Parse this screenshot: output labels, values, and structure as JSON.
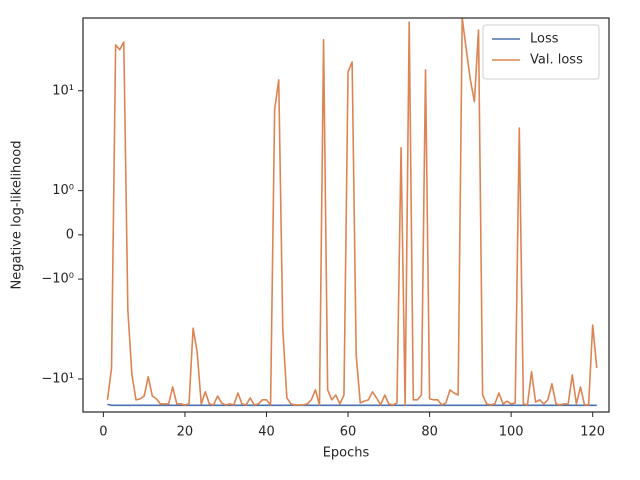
{
  "chart_data": {
    "type": "line",
    "xlabel": "Epochs",
    "ylabel": "Negative log-likelihood",
    "x": [
      1,
      2,
      3,
      4,
      5,
      6,
      7,
      8,
      9,
      10,
      11,
      12,
      13,
      14,
      15,
      16,
      17,
      18,
      19,
      20,
      21,
      22,
      23,
      24,
      25,
      26,
      27,
      28,
      29,
      30,
      31,
      32,
      33,
      34,
      35,
      36,
      37,
      38,
      39,
      40,
      41,
      42,
      43,
      44,
      45,
      46,
      47,
      48,
      49,
      50,
      51,
      52,
      53,
      54,
      55,
      56,
      57,
      58,
      59,
      60,
      61,
      62,
      63,
      64,
      65,
      66,
      67,
      68,
      69,
      70,
      71,
      72,
      73,
      74,
      75,
      76,
      77,
      78,
      79,
      80,
      81,
      82,
      83,
      84,
      85,
      86,
      87,
      88,
      89,
      90,
      91,
      92,
      93,
      94,
      95,
      96,
      97,
      98,
      99,
      100,
      101,
      102,
      103,
      104,
      105,
      106,
      107,
      108,
      109,
      110,
      111,
      112,
      113,
      114,
      115,
      116,
      117,
      118,
      119,
      120,
      121
    ],
    "series": [
      {
        "name": "Loss",
        "color": "#4c72b0",
        "values": [
          -20.9,
          -21.4,
          -21.4,
          -21.4,
          -21.4,
          -21.4,
          -21.4,
          -21.4,
          -21.4,
          -21.4,
          -21.4,
          -21.4,
          -21.4,
          -21.4,
          -21.4,
          -21.4,
          -21.4,
          -21.4,
          -21.4,
          -21.4,
          -21.4,
          -21.4,
          -21.4,
          -21.4,
          -21.4,
          -21.4,
          -21.4,
          -21.4,
          -21.4,
          -21.4,
          -21.4,
          -21.4,
          -21.4,
          -21.4,
          -21.4,
          -21.4,
          -21.4,
          -21.4,
          -21.4,
          -21.4,
          -21.4,
          -21.4,
          -21.4,
          -21.4,
          -21.4,
          -21.4,
          -21.4,
          -21.4,
          -21.4,
          -21.4,
          -21.4,
          -21.4,
          -21.4,
          -21.4,
          -21.4,
          -21.4,
          -21.4,
          -21.4,
          -21.4,
          -21.4,
          -21.4,
          -21.4,
          -21.4,
          -21.4,
          -21.4,
          -21.4,
          -21.4,
          -21.4,
          -21.4,
          -21.4,
          -21.4,
          -21.4,
          -21.4,
          -21.4,
          -21.4,
          -21.4,
          -21.4,
          -21.4,
          -21.4,
          -21.4,
          -21.4,
          -21.4,
          -21.4,
          -21.4,
          -21.4,
          -21.4,
          -21.4,
          -21.4,
          -21.4,
          -21.4,
          -21.4,
          -21.4,
          -21.4,
          -21.4,
          -21.4,
          -21.4,
          -21.4,
          -21.4,
          -21.4,
          -21.4,
          -21.4,
          -21.4,
          -21.4,
          -21.4,
          -21.4,
          -21.4,
          -21.4,
          -21.4,
          -21.4,
          -21.4,
          -21.4,
          -21.4,
          -21.4,
          -21.4,
          -21.4,
          -21.4,
          -21.4,
          -21.4,
          -21.4,
          -21.4,
          -21.4
        ]
      },
      {
        "name": "Val. loss",
        "color": "#dd8452",
        "values": [
          -18.3,
          -7.3,
          37.7,
          32.7,
          41,
          -1.7,
          -8.9,
          -18.3,
          -17.8,
          -16.4,
          -9.4,
          -16.4,
          -17.8,
          -20.6,
          -20.6,
          -20.6,
          -12.6,
          -20.6,
          -20.6,
          -21.2,
          -20.6,
          -2.3,
          -4.6,
          -20.6,
          -14.5,
          -20.6,
          -21.2,
          -16.4,
          -20,
          -21.2,
          -20.6,
          -21.2,
          -15,
          -20.6,
          -21.2,
          -17.3,
          -21.2,
          -20.6,
          -18.3,
          -18.3,
          -21.2,
          5.8,
          13.7,
          -2.4,
          -17.3,
          -20.6,
          -21.2,
          -21.2,
          -21.2,
          -20.6,
          -18.3,
          -13.7,
          -21.2,
          43.8,
          -13.7,
          -18.3,
          -15.9,
          -20.6,
          -15.9,
          17.3,
          23,
          -5,
          -20,
          -19,
          -18.3,
          -14.5,
          -17.3,
          -21.2,
          -15.9,
          -20.6,
          -21.2,
          -20,
          1.97,
          -21.2,
          73,
          -18.3,
          -18.3,
          -15.9,
          18.3,
          -17.8,
          -18.3,
          -18.3,
          -21.2,
          -20,
          -13.7,
          -15,
          -15.9,
          82,
          32.7,
          13.7,
          7.3,
          58,
          -15.9,
          -20.6,
          -21.2,
          -20.6,
          -15,
          -20.6,
          -19,
          -20.6,
          -20,
          3.4,
          -20.6,
          -21.2,
          -8.1,
          -19.5,
          -18.3,
          -20.6,
          -18.3,
          -11.5,
          -20.6,
          -21.2,
          -20.6,
          -20.6,
          -8.9,
          -20.6,
          -12.6,
          -21.2,
          -21.2,
          -2.1,
          -7.3
        ]
      }
    ],
    "xlim": [
      -5,
      124
    ],
    "xticks": [
      0,
      20,
      40,
      60,
      80,
      100,
      120
    ],
    "ylim": [
      -26,
      82
    ],
    "yscale": "symlog",
    "linthresh": 2,
    "yticks": [
      {
        "value": 10,
        "label": "10¹"
      },
      {
        "value": 1,
        "label": "10⁰"
      },
      0,
      {
        "value": -1,
        "label": "−10⁰"
      },
      {
        "value": -10,
        "label": "−10¹"
      }
    ],
    "legend": "upper right",
    "grid": false
  }
}
